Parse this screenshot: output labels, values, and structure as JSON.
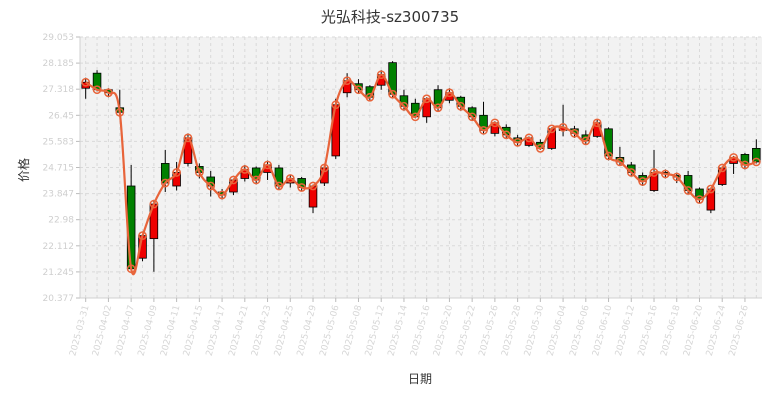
{
  "chart_data": {
    "type": "candlestick",
    "title": "光弘科技-sz300735",
    "xlabel": "日期",
    "ylabel": "价格",
    "ylim": [
      20.377,
      29.053
    ],
    "yticks": [
      "20.377",
      "21.245",
      "22.112",
      "22.98",
      "23.847",
      "24.715",
      "25.583",
      "26.45",
      "27.318",
      "28.185",
      "29.053"
    ],
    "grid": true,
    "colors": {
      "up": "#ee0000",
      "down": "#008000",
      "line": "#e8643a",
      "marker": "#e8643a",
      "plot_bg": "#f2f2f2",
      "border": "#000000"
    },
    "dates": [
      "2025-03-31",
      "2025-04-01",
      "2025-04-02",
      "2025-04-03",
      "2025-04-07",
      "2025-04-08",
      "2025-04-09",
      "2025-04-10",
      "2025-04-11",
      "2025-04-14",
      "2025-04-15",
      "2025-04-16",
      "2025-04-17",
      "2025-04-18",
      "2025-04-21",
      "2025-04-22",
      "2025-04-23",
      "2025-04-24",
      "2025-04-25",
      "2025-04-28",
      "2025-04-29",
      "2025-04-30",
      "2025-05-06",
      "2025-05-07",
      "2025-05-08",
      "2025-05-09",
      "2025-05-12",
      "2025-05-13",
      "2025-05-14",
      "2025-05-15",
      "2025-05-16",
      "2025-05-19",
      "2025-05-20",
      "2025-05-21",
      "2025-05-22",
      "2025-05-23",
      "2025-05-26",
      "2025-05-27",
      "2025-05-28",
      "2025-05-29",
      "2025-05-30",
      "2025-06-03",
      "2025-06-04",
      "2025-06-05",
      "2025-06-06",
      "2025-06-09",
      "2025-06-10",
      "2025-06-11",
      "2025-06-12",
      "2025-06-13",
      "2025-06-16",
      "2025-06-17",
      "2025-06-18",
      "2025-06-19",
      "2025-06-20",
      "2025-06-23",
      "2025-06-24",
      "2025-06-25",
      "2025-06-26",
      "2025-06-27"
    ],
    "xticks": [
      "2025-03-31",
      "2025-04-02",
      "2025-04-07",
      "2025-04-09",
      "2025-04-11",
      "2025-04-15",
      "2025-04-17",
      "2025-04-21",
      "2025-04-23",
      "2025-04-25",
      "2025-04-29",
      "2025-05-06",
      "2025-05-08",
      "2025-05-12",
      "2025-05-14",
      "2025-05-16",
      "2025-05-20",
      "2025-05-22",
      "2025-05-26",
      "2025-05-28",
      "2025-05-30",
      "2025-06-04",
      "2025-06-06",
      "2025-06-10",
      "2025-06-12",
      "2025-06-16",
      "2025-06-18",
      "2025-06-20",
      "2025-06-24",
      "2025-06-26"
    ],
    "ohlc": [
      [
        27.35,
        27.55,
        27.0,
        27.7
      ],
      [
        27.85,
        27.3,
        27.25,
        27.95
      ],
      [
        27.3,
        27.2,
        27.05,
        27.35
      ],
      [
        26.7,
        26.55,
        26.5,
        27.3
      ],
      [
        24.1,
        21.35,
        21.35,
        24.8
      ],
      [
        21.7,
        22.45,
        21.6,
        22.5
      ],
      [
        22.35,
        23.5,
        21.25,
        23.6
      ],
      [
        24.85,
        24.2,
        23.9,
        25.3
      ],
      [
        24.1,
        24.55,
        23.95,
        24.9
      ],
      [
        24.85,
        25.7,
        24.75,
        25.85
      ],
      [
        24.75,
        24.55,
        24.35,
        24.85
      ],
      [
        24.4,
        24.1,
        23.75,
        24.6
      ],
      [
        23.9,
        23.8,
        23.65,
        24.0
      ],
      [
        23.9,
        24.3,
        23.8,
        24.35
      ],
      [
        24.35,
        24.65,
        24.25,
        24.8
      ],
      [
        24.7,
        24.3,
        24.15,
        24.75
      ],
      [
        24.55,
        24.8,
        24.3,
        24.95
      ],
      [
        24.7,
        24.1,
        24.0,
        24.8
      ],
      [
        24.2,
        24.35,
        24.05,
        24.45
      ],
      [
        24.35,
        24.05,
        23.95,
        24.4
      ],
      [
        23.4,
        24.1,
        23.2,
        24.15
      ],
      [
        24.2,
        24.7,
        24.1,
        24.8
      ],
      [
        25.1,
        26.8,
        25.0,
        27.0
      ],
      [
        27.2,
        27.6,
        27.05,
        27.85
      ],
      [
        27.5,
        27.3,
        27.2,
        27.65
      ],
      [
        27.4,
        27.05,
        26.95,
        27.45
      ],
      [
        27.45,
        27.8,
        27.3,
        27.95
      ],
      [
        28.2,
        27.15,
        27.05,
        28.25
      ],
      [
        27.1,
        26.75,
        26.6,
        27.3
      ],
      [
        26.85,
        26.4,
        26.35,
        27.0
      ],
      [
        26.4,
        27.0,
        26.2,
        27.05
      ],
      [
        27.3,
        26.7,
        26.6,
        27.45
      ],
      [
        26.95,
        27.2,
        26.85,
        27.35
      ],
      [
        27.05,
        26.75,
        26.6,
        27.1
      ],
      [
        26.7,
        26.4,
        26.3,
        26.75
      ],
      [
        26.45,
        25.95,
        25.85,
        26.9
      ],
      [
        25.85,
        26.2,
        25.75,
        26.25
      ],
      [
        26.05,
        25.8,
        25.7,
        26.15
      ],
      [
        25.7,
        25.55,
        25.45,
        25.8
      ],
      [
        25.45,
        25.7,
        25.4,
        25.75
      ],
      [
        25.55,
        25.35,
        25.3,
        25.65
      ],
      [
        25.35,
        26.0,
        25.3,
        26.05
      ],
      [
        25.95,
        26.05,
        25.75,
        26.8
      ],
      [
        26.0,
        25.85,
        25.7,
        26.1
      ],
      [
        25.8,
        25.6,
        25.5,
        25.95
      ],
      [
        25.75,
        26.2,
        25.7,
        26.3
      ],
      [
        26.0,
        25.1,
        24.95,
        26.05
      ],
      [
        25.05,
        24.9,
        24.8,
        25.4
      ],
      [
        24.8,
        24.55,
        24.45,
        24.9
      ],
      [
        24.45,
        24.25,
        24.1,
        24.55
      ],
      [
        23.95,
        24.55,
        23.9,
        25.3
      ],
      [
        24.55,
        24.5,
        24.35,
        24.65
      ],
      [
        24.45,
        24.4,
        24.2,
        24.55
      ],
      [
        24.45,
        23.95,
        23.85,
        24.6
      ],
      [
        24.0,
        23.65,
        23.55,
        24.05
      ],
      [
        23.3,
        24.0,
        23.2,
        24.05
      ],
      [
        24.15,
        24.7,
        24.1,
        24.75
      ],
      [
        24.85,
        25.05,
        24.5,
        25.1
      ],
      [
        25.15,
        24.8,
        24.65,
        25.2
      ],
      [
        25.35,
        24.9,
        24.85,
        25.65
      ]
    ]
  }
}
